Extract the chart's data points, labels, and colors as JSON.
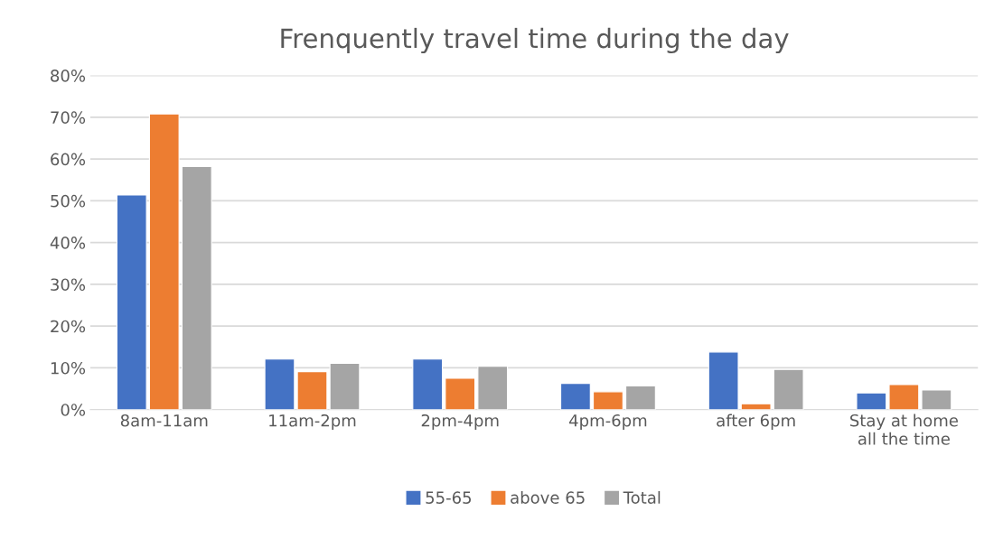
{
  "chart_data": {
    "type": "bar",
    "title": "Frenquently travel time during the day",
    "categories": [
      "8am-11am",
      "11am-2pm",
      "2pm-4pm",
      "4pm-6pm",
      "after 6pm",
      "Stay at home\nall the time"
    ],
    "series": [
      {
        "name": "55-65",
        "color": "#4472c4",
        "values": [
          51.4,
          12.1,
          12.1,
          6.3,
          13.8,
          4.0
        ]
      },
      {
        "name": "above 65",
        "color": "#ed7d31",
        "values": [
          70.8,
          9.1,
          7.5,
          4.3,
          1.4,
          6.0
        ]
      },
      {
        "name": "Total",
        "color": "#a5a5a5",
        "values": [
          58.2,
          11.1,
          10.4,
          5.7,
          9.6,
          4.7
        ]
      }
    ],
    "ylim": [
      0,
      80
    ],
    "yticks": [
      {
        "value": 0,
        "label": "0%"
      },
      {
        "value": 10,
        "label": "10%"
      },
      {
        "value": 20,
        "label": "20%"
      },
      {
        "value": 30,
        "label": "30%"
      },
      {
        "value": 40,
        "label": "40%"
      },
      {
        "value": 50,
        "label": "50%"
      },
      {
        "value": 60,
        "label": "60%"
      },
      {
        "value": 70,
        "label": "70%"
      },
      {
        "value": 80,
        "label": "80%"
      }
    ],
    "grid": "y",
    "legend": "bottom"
  }
}
